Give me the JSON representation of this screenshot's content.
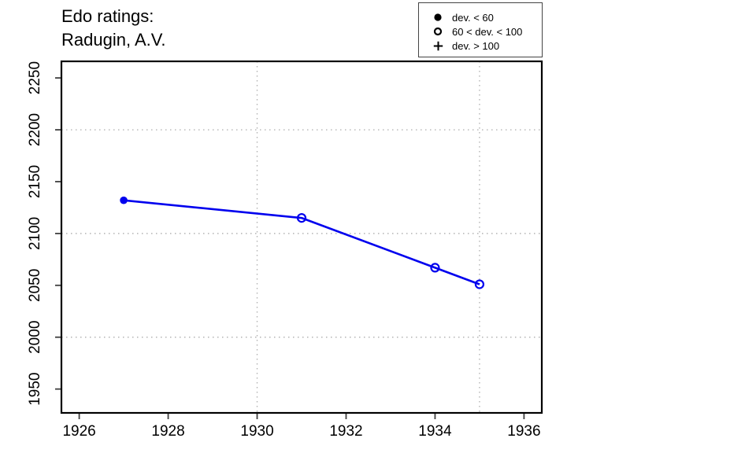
{
  "title": {
    "line1": "Edo ratings:",
    "line2": "Radugin, A.V."
  },
  "legend": {
    "items": [
      {
        "symbol": "filled-circle",
        "label": "dev. < 60"
      },
      {
        "symbol": "open-circle",
        "label": "60 < dev. < 100"
      },
      {
        "symbol": "plus",
        "label": "dev. > 100"
      }
    ]
  },
  "colors": {
    "series": "#0000ee",
    "grid": "#b3b3b3",
    "frame": "#000000",
    "tick": "#404040",
    "legend_symbol": "#000000"
  },
  "chart_data": {
    "type": "line",
    "title": "Edo ratings: Radugin, A.V.",
    "xlabel": "",
    "ylabel": "",
    "xlim": [
      1925.6,
      1936.4
    ],
    "ylim": [
      1927,
      2266
    ],
    "x_ticks": [
      1926,
      1928,
      1930,
      1932,
      1934,
      1936
    ],
    "y_ticks": [
      1950,
      2000,
      2050,
      2100,
      2150,
      2200,
      2250
    ],
    "x_grid": [
      1930,
      1935
    ],
    "y_grid": [
      2000,
      2100,
      2200
    ],
    "grid_style": "dotted",
    "legend_position": "top-right",
    "series": [
      {
        "name": "Edo rating",
        "points": [
          {
            "x": 1927,
            "y": 2132,
            "marker": "filled-circle",
            "dev": "dev. < 60"
          },
          {
            "x": 1931,
            "y": 2115,
            "marker": "open-circle",
            "dev": "60 < dev. < 100"
          },
          {
            "x": 1934,
            "y": 2067,
            "marker": "open-circle",
            "dev": "60 < dev. < 100"
          },
          {
            "x": 1935,
            "y": 2051,
            "marker": "open-circle",
            "dev": "60 < dev. < 100"
          }
        ]
      }
    ]
  }
}
